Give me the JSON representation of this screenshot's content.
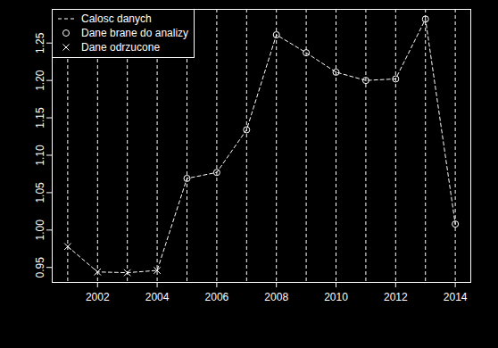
{
  "chart_data": {
    "type": "line",
    "x": [
      2001,
      2002,
      2003,
      2004,
      2005,
      2006,
      2007,
      2008,
      2009,
      2010,
      2011,
      2012,
      2013,
      2014
    ],
    "series": [
      {
        "name": "Calosc danych",
        "color": "#ffffff",
        "line_style": "dashed",
        "values": [
          0.978,
          0.944,
          0.943,
          0.946,
          1.069,
          1.077,
          1.134,
          1.261,
          1.237,
          1.211,
          1.2,
          1.202,
          1.282,
          1.008
        ]
      },
      {
        "name": "Dane brane do analizy",
        "color": "#ffffff",
        "type": "scatter",
        "marker": "circle",
        "values": [
          null,
          null,
          null,
          null,
          1.069,
          1.077,
          1.134,
          1.261,
          1.237,
          1.211,
          1.2,
          1.202,
          1.282,
          1.008
        ]
      },
      {
        "name": "Dane odrzucone",
        "color": "#ffffff",
        "type": "scatter",
        "marker": "x",
        "values": [
          0.978,
          0.944,
          0.943,
          0.946,
          null,
          null,
          null,
          null,
          null,
          null,
          null,
          null,
          null,
          null
        ]
      }
    ],
    "xlim": [
      2000.48,
      2014.52
    ],
    "xticks": [
      2002,
      2004,
      2006,
      2008,
      2010,
      2012,
      2014
    ],
    "ylim": [
      0.93,
      1.295
    ],
    "yticks": [
      0.95,
      {
        "value": 1.0,
        "label": "1.00"
      },
      1.05,
      {
        "value": 1.1,
        "label": "1.10"
      },
      1.15,
      {
        "value": 1.2,
        "label": "1.20"
      },
      1.25
    ],
    "grid": true,
    "legend": "top-left"
  }
}
